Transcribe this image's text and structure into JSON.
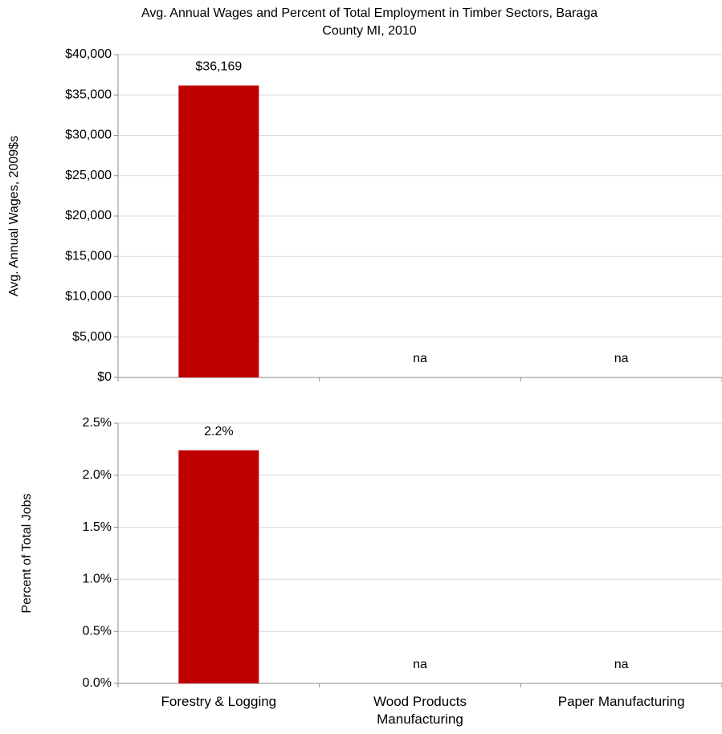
{
  "chart_data": [
    {
      "type": "bar",
      "title": "Avg. Annual Wages and Percent of Total Employment in Timber Sectors, Baraga County MI, 2010",
      "y_label": "Avg. Annual Wages, 2009$s",
      "categories": [
        null,
        null,
        null
      ],
      "values": [
        36169,
        null,
        null
      ],
      "value_labels": [
        "$36,169",
        "na",
        "na"
      ],
      "color": "#c00000",
      "ylim": [
        0,
        40000
      ],
      "yticks": [
        {
          "value": 0,
          "label": "$0"
        },
        {
          "value": 5000,
          "label": "$5,000"
        },
        {
          "value": 10000,
          "label": "$10,000"
        },
        {
          "value": 15000,
          "label": "$15,000"
        },
        {
          "value": 20000,
          "label": "$20,000"
        },
        {
          "value": 25000,
          "label": "$25,000"
        },
        {
          "value": 30000,
          "label": "$30,000"
        },
        {
          "value": 35000,
          "label": "$35,000"
        },
        {
          "value": 40000,
          "label": "$40,000"
        }
      ],
      "grid": true
    },
    {
      "type": "bar",
      "y_label": "Percent of Total Jobs",
      "categories": [
        "Forestry & Logging",
        "Wood Products Manufacturing",
        "Paper Manufacturing"
      ],
      "values": [
        2.24,
        null,
        null
      ],
      "value_labels": [
        "2.2%",
        "na",
        "na"
      ],
      "color": "#c00000",
      "ylim": [
        0,
        2.5
      ],
      "yticks": [
        {
          "value": 0,
          "label": "0.0%"
        },
        {
          "value": 0.5,
          "label": "0.5%"
        },
        {
          "value": 1,
          "label": "1.0%"
        },
        {
          "value": 1.5,
          "label": "1.5%"
        },
        {
          "value": 2,
          "label": "2.0%"
        },
        {
          "value": 2.5,
          "label": "2.5%"
        }
      ],
      "grid": true
    }
  ]
}
